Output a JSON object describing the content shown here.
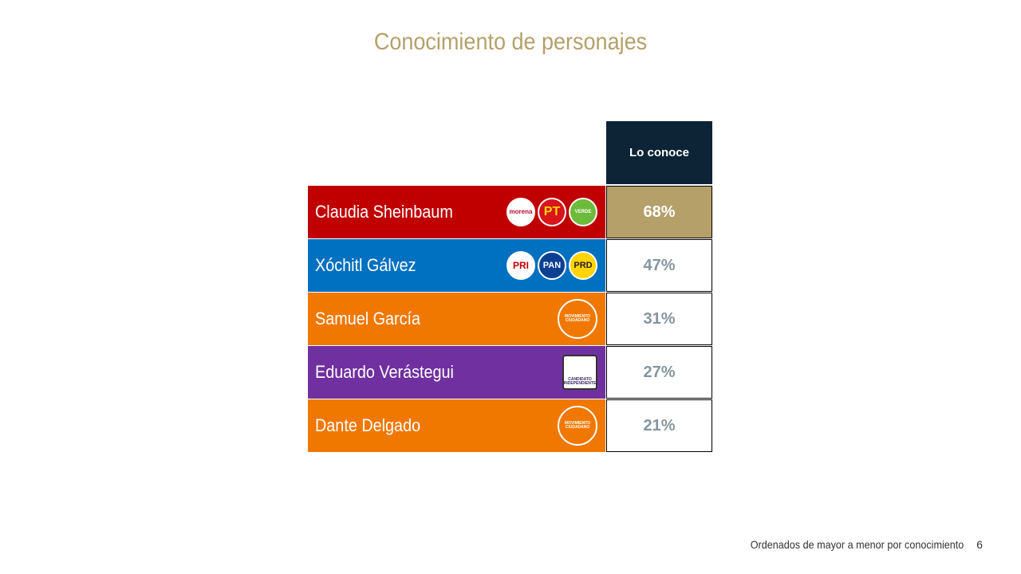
{
  "title": "Conocimiento de personajes",
  "table": {
    "header": "Lo conoce",
    "rows": [
      {
        "name": "Claudia Sheinbaum",
        "value": "68%",
        "logos": [
          "morena",
          "PT",
          "VERDE"
        ]
      },
      {
        "name": "Xóchitl Gálvez",
        "value": "47%",
        "logos": [
          "PRI",
          "PAN",
          "PRD"
        ]
      },
      {
        "name": "Samuel García",
        "value": "31%",
        "logos": [
          "MOVIMIENTO CIUDADANO"
        ]
      },
      {
        "name": "Eduardo Verástegui",
        "value": "27%",
        "logos": [
          "CANDIDATO INDEPENDIENTE"
        ]
      },
      {
        "name": "Dante Delgado",
        "value": "21%",
        "logos": [
          "MOVIMIENTO CIUDADANO"
        ]
      }
    ]
  },
  "footnote": "Ordenados de mayor a menor por conocimiento",
  "page_number": "6"
}
